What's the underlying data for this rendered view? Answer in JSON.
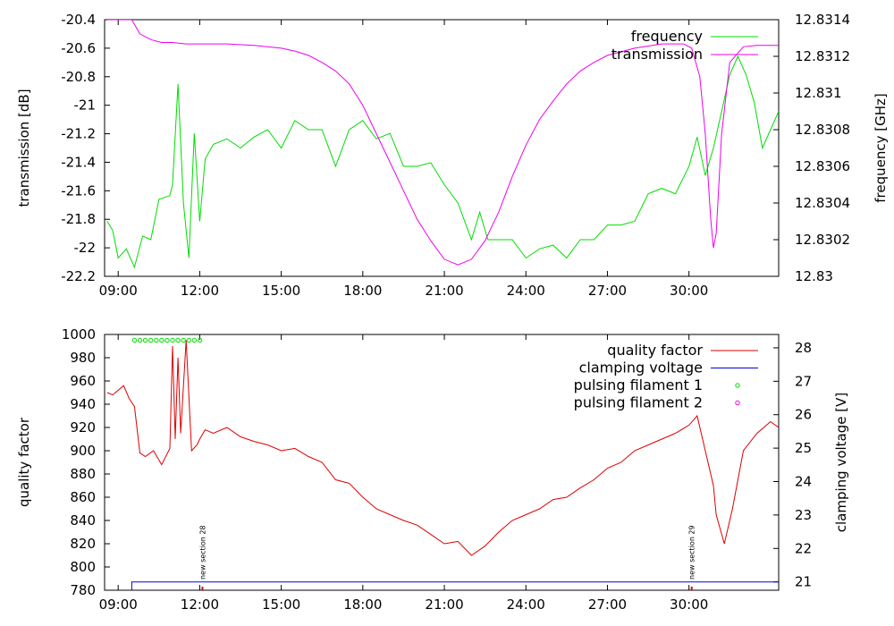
{
  "chart_data": [
    {
      "type": "line",
      "title": "",
      "xlabel": "",
      "ylabel": "transmission [dB]",
      "y2label": "frequency [GHz]",
      "xlim": [
        8.5,
        33.3
      ],
      "ylim": [
        -22.2,
        -20.4
      ],
      "y2lim": [
        12.83,
        12.8314
      ],
      "x_ticks": [
        9,
        12,
        15,
        18,
        21,
        24,
        27,
        30
      ],
      "x_tick_labels": [
        "09:00",
        "12:00",
        "15:00",
        "18:00",
        "21:00",
        "24:00",
        "27:00",
        "30:00"
      ],
      "y_ticks": [
        -20.4,
        -20.6,
        -20.8,
        -21,
        -21.2,
        -21.4,
        -21.6,
        -21.8,
        -22,
        -22.2
      ],
      "y_tick_labels": [
        "-20.4",
        "-20.6",
        "-20.8",
        "-21",
        "-21.2",
        "-21.4",
        "-21.6",
        "-21.8",
        "-22",
        "-22.2"
      ],
      "y2_ticks": [
        12.8314,
        12.8312,
        12.831,
        12.8308,
        12.8306,
        12.8304,
        12.8302,
        12.83
      ],
      "y2_tick_labels": [
        "12.8314",
        "12.8312",
        "12.831",
        "12.8308",
        "12.8306",
        "12.8304",
        "12.8302",
        "12.83"
      ],
      "legend_position": "top-right",
      "series": [
        {
          "name": "frequency",
          "axis": "y2",
          "color": "#00dd00",
          "x": [
            8.6,
            8.8,
            9.0,
            9.3,
            9.6,
            9.9,
            10.2,
            10.5,
            10.9,
            11.0,
            11.2,
            11.4,
            11.6,
            11.8,
            12.0,
            12.2,
            12.5,
            13.0,
            13.5,
            14.0,
            14.5,
            15.0,
            15.5,
            16.0,
            16.5,
            17.0,
            17.5,
            18.0,
            18.5,
            19.0,
            19.5,
            20.0,
            20.5,
            21.0,
            21.5,
            22.0,
            22.3,
            22.6,
            23.0,
            23.5,
            24.0,
            24.5,
            25.0,
            25.5,
            26.0,
            26.5,
            27.0,
            27.5,
            28.0,
            28.5,
            29.0,
            29.5,
            30.0,
            30.3,
            30.6,
            30.9,
            31.2,
            31.5,
            31.8,
            32.1,
            32.4,
            32.7,
            33.0,
            33.3
          ],
          "values": [
            12.8303,
            12.83025,
            12.8301,
            12.83015,
            12.83005,
            12.83022,
            12.8302,
            12.83042,
            12.83044,
            12.8305,
            12.83105,
            12.8304,
            12.8301,
            12.83078,
            12.8303,
            12.83064,
            12.83072,
            12.83075,
            12.8307,
            12.83076,
            12.8308,
            12.8307,
            12.83085,
            12.8308,
            12.8308,
            12.8306,
            12.8308,
            12.83085,
            12.83075,
            12.83078,
            12.8306,
            12.8306,
            12.83062,
            12.8305,
            12.8304,
            12.8302,
            12.83035,
            12.8302,
            12.8302,
            12.8302,
            12.8301,
            12.83015,
            12.83017,
            12.8301,
            12.8302,
            12.8302,
            12.83028,
            12.83028,
            12.8303,
            12.83045,
            12.83048,
            12.83045,
            12.8306,
            12.83076,
            12.83055,
            12.8307,
            12.8309,
            12.8311,
            12.8312,
            12.8311,
            12.83095,
            12.8307,
            12.8308,
            12.8309
          ]
        },
        {
          "name": "transmission",
          "axis": "y",
          "color": "#ee00ee",
          "x": [
            8.6,
            8.8,
            9.0,
            9.5,
            9.8,
            10.2,
            10.6,
            11.0,
            11.5,
            12.0,
            13.0,
            14.0,
            15.0,
            15.5,
            16.0,
            16.5,
            17.0,
            17.5,
            18.0,
            18.5,
            19.0,
            19.5,
            20.0,
            20.5,
            21.0,
            21.5,
            22.0,
            22.5,
            23.0,
            23.5,
            24.0,
            24.5,
            25.0,
            25.5,
            26.0,
            26.5,
            27.0,
            28.0,
            29.0,
            29.8,
            30.1,
            30.4,
            30.6,
            30.8,
            30.9,
            31.0,
            31.2,
            31.5,
            32.0,
            32.5,
            33.3
          ],
          "values": [
            -20.4,
            -20.4,
            -20.4,
            -20.4,
            -20.5,
            -20.54,
            -20.56,
            -20.56,
            -20.57,
            -20.57,
            -20.57,
            -20.58,
            -20.6,
            -20.62,
            -20.65,
            -20.7,
            -20.76,
            -20.85,
            -21.0,
            -21.2,
            -21.4,
            -21.6,
            -21.8,
            -21.95,
            -22.08,
            -22.12,
            -22.08,
            -21.95,
            -21.75,
            -21.5,
            -21.28,
            -21.1,
            -20.97,
            -20.85,
            -20.76,
            -20.7,
            -20.65,
            -20.6,
            -20.57,
            -20.57,
            -20.6,
            -20.8,
            -21.2,
            -21.8,
            -22.0,
            -21.9,
            -21.2,
            -20.7,
            -20.59,
            -20.58,
            -20.58
          ]
        }
      ]
    },
    {
      "type": "line",
      "title": "",
      "xlabel": "",
      "ylabel": "quality factor",
      "y2label": "clamping voltage [V]",
      "xlim": [
        8.5,
        33.3
      ],
      "ylim": [
        780,
        1000
      ],
      "y2lim": [
        20.75,
        28.4
      ],
      "x_ticks": [
        9,
        12,
        15,
        18,
        21,
        24,
        27,
        30
      ],
      "x_tick_labels": [
        "09:00",
        "12:00",
        "15:00",
        "18:00",
        "21:00",
        "24:00",
        "27:00",
        "30:00"
      ],
      "y_ticks": [
        1000,
        980,
        960,
        940,
        920,
        900,
        880,
        860,
        840,
        820,
        800,
        780
      ],
      "y_tick_labels": [
        "1000",
        "980",
        "960",
        "940",
        "920",
        "900",
        "880",
        "860",
        "840",
        "820",
        "800",
        "780"
      ],
      "y2_ticks": [
        28,
        27,
        26,
        25,
        24,
        23,
        22,
        21
      ],
      "y2_tick_labels": [
        "28",
        "27",
        "26",
        "25",
        "24",
        "23",
        "22",
        "21"
      ],
      "legend_position": "top-right",
      "series": [
        {
          "name": "quality factor",
          "axis": "y",
          "color": "#dd0000",
          "x": [
            8.6,
            8.8,
            9.0,
            9.2,
            9.4,
            9.6,
            9.8,
            10.0,
            10.3,
            10.6,
            10.9,
            11.0,
            11.1,
            11.2,
            11.3,
            11.5,
            11.7,
            11.9,
            12.0,
            12.2,
            12.5,
            13.0,
            13.5,
            14.0,
            14.5,
            15.0,
            15.5,
            16.0,
            16.5,
            17.0,
            17.5,
            18.0,
            18.5,
            19.0,
            19.5,
            20.0,
            20.5,
            21.0,
            21.5,
            22.0,
            22.5,
            23.0,
            23.5,
            24.0,
            24.5,
            25.0,
            25.5,
            26.0,
            26.5,
            27.0,
            27.5,
            28.0,
            28.5,
            29.0,
            29.5,
            30.0,
            30.3,
            30.6,
            30.9,
            31.0,
            31.3,
            31.6,
            32.0,
            32.5,
            33.0,
            33.3
          ],
          "values": [
            950,
            948,
            952,
            956,
            945,
            938,
            898,
            895,
            900,
            888,
            902,
            990,
            910,
            980,
            915,
            995,
            900,
            905,
            910,
            918,
            915,
            920,
            912,
            908,
            905,
            900,
            902,
            895,
            890,
            875,
            872,
            860,
            850,
            845,
            840,
            836,
            828,
            820,
            822,
            810,
            818,
            830,
            840,
            845,
            850,
            858,
            860,
            868,
            875,
            885,
            890,
            900,
            905,
            910,
            915,
            922,
            930,
            900,
            870,
            845,
            820,
            850,
            900,
            915,
            925,
            920
          ]
        },
        {
          "name": "clamping voltage",
          "axis": "y2",
          "color": "#0000dd",
          "x": [
            9.5,
            9.5,
            33.3
          ],
          "values": [
            20.75,
            21.0,
            21.0
          ]
        },
        {
          "name": "pulsing filament 1",
          "axis": "y",
          "color": "#00dd00",
          "marker": "circle",
          "x": [
            9.6,
            9.8,
            10.0,
            10.2,
            10.4,
            10.6,
            10.8,
            11.0,
            11.2,
            11.4,
            11.6,
            11.8,
            12.0
          ],
          "values": [
            995,
            995,
            995,
            995,
            995,
            995,
            995,
            995,
            995,
            995,
            995,
            995,
            995
          ]
        },
        {
          "name": "pulsing filament 2",
          "axis": "y",
          "color": "#ee00ee",
          "marker": "circle",
          "x": [],
          "values": []
        }
      ],
      "annotations": [
        {
          "text": "new section 28",
          "x": 12.1
        },
        {
          "text": "new section 29",
          "x": 30.1
        }
      ]
    }
  ]
}
